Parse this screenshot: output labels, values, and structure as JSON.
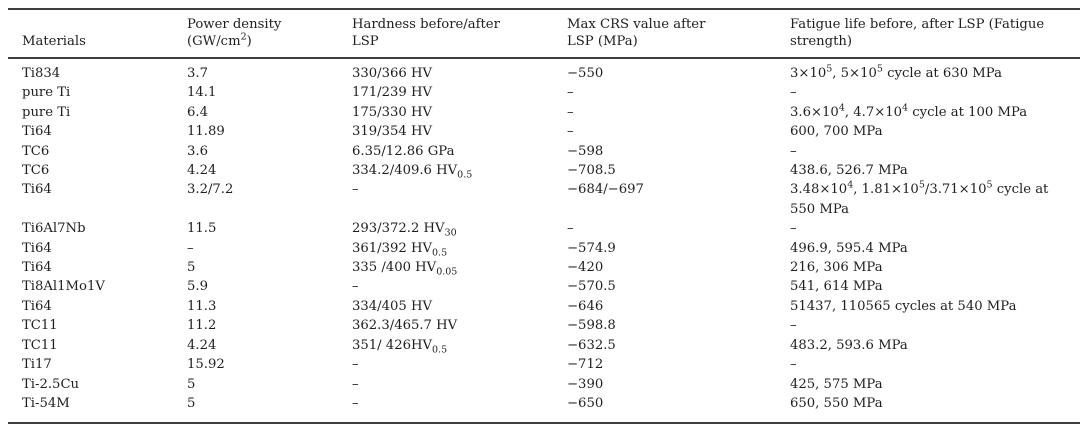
{
  "colors": {
    "rule": "#3f3f3f",
    "text": "#1e1e1e",
    "background": "#ffffff"
  },
  "table": {
    "columns": [
      {
        "id": "materials",
        "label": "Materials"
      },
      {
        "id": "power-density",
        "label": "Power density\n(GW/cm^{2})"
      },
      {
        "id": "hardness",
        "label": "Hardness before/after\nLSP"
      },
      {
        "id": "max-crs",
        "label": "Max CRS value after\nLSP (MPa)"
      },
      {
        "id": "fatigue-life",
        "label": "Fatigue life before, after LSP (Fatigue\nstrength)"
      }
    ],
    "rows": [
      {
        "material": "Ti834",
        "power": "3.7",
        "hardness": "330/366 HV",
        "crs": "−550",
        "fatigue": "3×10^{5}, 5×10^{5} cycle at 630 MPa"
      },
      {
        "material": "pure Ti",
        "power": "14.1",
        "hardness": "171/239 HV",
        "crs": "–",
        "fatigue": "–"
      },
      {
        "material": "pure Ti",
        "power": "6.4",
        "hardness": "175/330 HV",
        "crs": "–",
        "fatigue": "3.6×10^{4}, 4.7×10^{4} cycle at 100 MPa"
      },
      {
        "material": "Ti64",
        "power": "11.89",
        "hardness": "319/354 HV",
        "crs": "–",
        "fatigue": "600, 700 MPa"
      },
      {
        "material": "TC6",
        "power": "3.6",
        "hardness": "6.35/12.86 GPa",
        "crs": "−598",
        "fatigue": "–"
      },
      {
        "material": "TC6",
        "power": "4.24",
        "hardness": "334.2/409.6 HV_{0.5}",
        "crs": "−708.5",
        "fatigue": "438.6, 526.7 MPa"
      },
      {
        "material": "Ti64",
        "power": "3.2/7.2",
        "hardness": "–",
        "crs": "−684/−697",
        "fatigue": "3.48×10^{4}, 1.81×10^{5}/3.71×10^{5} cycle at\n550 MPa"
      },
      {
        "material": "Ti6Al7Nb",
        "power": "11.5",
        "hardness": "293/372.2 HV_{30}",
        "crs": "–",
        "fatigue": "–"
      },
      {
        "material": "Ti64",
        "power": "–",
        "hardness": "361/392 HV_{0.5}",
        "crs": "−574.9",
        "fatigue": "496.9, 595.4 MPa"
      },
      {
        "material": "Ti64",
        "power": "5",
        "hardness": "335 /400 HV_{0.05}",
        "crs": "−420",
        "fatigue": "216, 306 MPa"
      },
      {
        "material": "Ti8Al1Mo1V",
        "power": "5.9",
        "hardness": "–",
        "crs": "−570.5",
        "fatigue": "541, 614 MPa"
      },
      {
        "material": "Ti64",
        "power": "11.3",
        "hardness": "334/405 HV",
        "crs": "−646",
        "fatigue": "51437, 110565 cycles at 540 MPa"
      },
      {
        "material": "TC11",
        "power": "11.2",
        "hardness": "362.3/465.7 HV",
        "crs": "−598.8",
        "fatigue": "–"
      },
      {
        "material": "TC11",
        "power": "4.24",
        "hardness": "351/ 426HV_{0.5}",
        "crs": "−632.5",
        "fatigue": "483.2, 593.6 MPa"
      },
      {
        "material": "Ti17",
        "power": "15.92",
        "hardness": "–",
        "crs": "−712",
        "fatigue": "–"
      },
      {
        "material": "Ti-2.5Cu",
        "power": "5",
        "hardness": "–",
        "crs": "−390",
        "fatigue": "425, 575 MPa"
      },
      {
        "material": "Ti-54M",
        "power": "5",
        "hardness": "–",
        "crs": "−650",
        "fatigue": "650, 550 MPa"
      }
    ]
  }
}
